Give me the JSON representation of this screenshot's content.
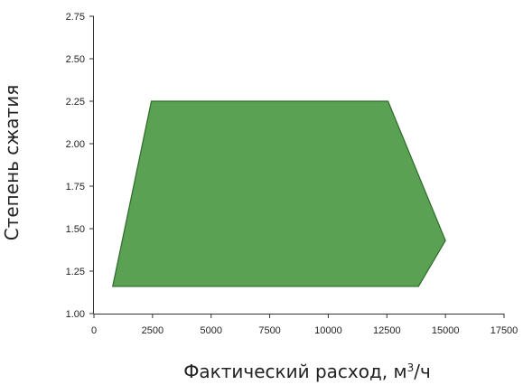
{
  "chart_data": {
    "type": "area",
    "xlabel_text": "Фактический расход, м",
    "xlabel_sup": "3",
    "xlabel_suffix": "/ч",
    "ylabel": "Степень сжатия",
    "xlim": [
      0,
      17500
    ],
    "ylim": [
      1.0,
      2.75
    ],
    "x_ticks": [
      0,
      2500,
      5000,
      7500,
      10000,
      12500,
      15000,
      17500
    ],
    "x_tick_labels": [
      "0",
      "2500",
      "5000",
      "7500",
      "10000",
      "12500",
      "15000",
      "17500"
    ],
    "y_ticks": [
      1.0,
      1.25,
      1.5,
      1.75,
      2.0,
      2.25,
      2.5,
      2.75
    ],
    "y_tick_labels": [
      "1.00",
      "1.25",
      "1.50",
      "1.75",
      "2.00",
      "2.25",
      "2.50",
      "2.75"
    ],
    "grid": false,
    "series": [
      {
        "fill_color": "#5aa153",
        "stroke_color": "#2e6b2a",
        "polygon": [
          {
            "x": 800,
            "y": 1.16
          },
          {
            "x": 2450,
            "y": 2.25
          },
          {
            "x": 12550,
            "y": 2.25
          },
          {
            "x": 15000,
            "y": 1.43
          },
          {
            "x": 13850,
            "y": 1.16
          }
        ]
      }
    ]
  }
}
